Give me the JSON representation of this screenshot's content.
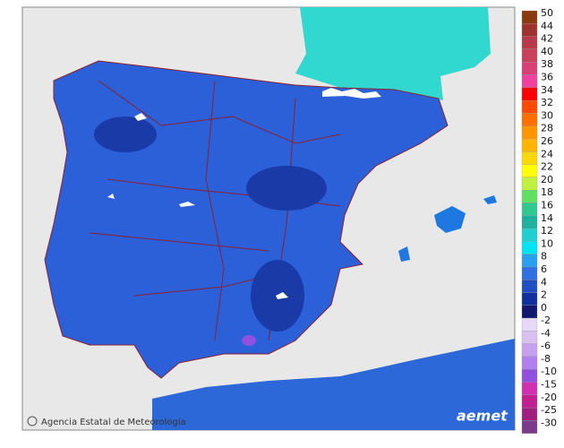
{
  "credit": "Agencia Estatal de Meteorología",
  "logo": "aemet",
  "legend": {
    "positive": [
      {
        "label": "50",
        "color": "#8b3a0f"
      },
      {
        "label": "44",
        "color": "#a0322d"
      },
      {
        "label": "42",
        "color": "#b83a4a"
      },
      {
        "label": "40",
        "color": "#c8405a"
      },
      {
        "label": "38",
        "color": "#d84078"
      },
      {
        "label": "36",
        "color": "#f040a0"
      },
      {
        "label": "34",
        "color": "#ff0000"
      },
      {
        "label": "32",
        "color": "#ff4a00"
      },
      {
        "label": "30",
        "color": "#ff7000"
      },
      {
        "label": "28",
        "color": "#ff9400"
      },
      {
        "label": "26",
        "color": "#ffb400"
      },
      {
        "label": "24",
        "color": "#ffd800"
      },
      {
        "label": "22",
        "color": "#ffff00"
      },
      {
        "label": "20",
        "color": "#c0f040"
      },
      {
        "label": "18",
        "color": "#60e060"
      },
      {
        "label": "16",
        "color": "#30c890"
      },
      {
        "label": "14",
        "color": "#20b0a0"
      },
      {
        "label": "12",
        "color": "#20d0d0"
      },
      {
        "label": "10",
        "color": "#00e4f4"
      },
      {
        "label": "8",
        "color": "#2aa0f0"
      },
      {
        "label": "6",
        "color": "#3070e0"
      },
      {
        "label": "4",
        "color": "#2050c0"
      },
      {
        "label": "2",
        "color": "#1030a0"
      },
      {
        "label": "0",
        "color": "#101870"
      }
    ],
    "negative": [
      {
        "label": "-2",
        "color": "#e8d8f8"
      },
      {
        "label": "-4",
        "color": "#d8c0f0"
      },
      {
        "label": "-6",
        "color": "#c8a0f0"
      },
      {
        "label": "-8",
        "color": "#b080f0"
      },
      {
        "label": "-10",
        "color": "#9050e0"
      },
      {
        "label": "-15",
        "color": "#d030b0"
      },
      {
        "label": "-20",
        "color": "#c02090"
      },
      {
        "label": "-25",
        "color": "#a02080"
      },
      {
        "label": "-30",
        "color": "#7c3a8a"
      }
    ]
  }
}
